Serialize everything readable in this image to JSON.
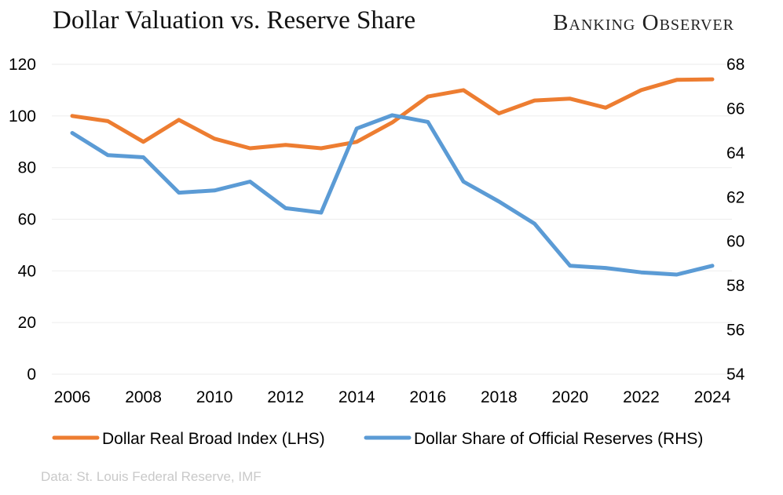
{
  "header": {
    "title": "Dollar Valuation vs. Reserve Share",
    "brand": "Banking Observer"
  },
  "footer": {
    "source": "Data: St. Louis Federal Reserve, IMF"
  },
  "colors": {
    "index": "#ed7d31",
    "reserves": "#5b9bd5",
    "grid": "#efefef"
  },
  "chart_data": {
    "type": "line",
    "title": "Dollar Valuation vs. Reserve Share",
    "x": [
      2006,
      2007,
      2008,
      2009,
      2010,
      2011,
      2012,
      2013,
      2014,
      2015,
      2016,
      2017,
      2018,
      2019,
      2020,
      2021,
      2022,
      2023,
      2024
    ],
    "x_ticks": [
      "2006",
      "2008",
      "2010",
      "2012",
      "2014",
      "2016",
      "2018",
      "2020",
      "2022",
      "2024"
    ],
    "y_left": {
      "range": [
        0,
        120
      ],
      "ticks": [
        "0",
        "20",
        "40",
        "60",
        "80",
        "100",
        "120"
      ]
    },
    "y_right": {
      "range": [
        54,
        68
      ],
      "ticks": [
        "54",
        "56",
        "58",
        "60",
        "62",
        "64",
        "66",
        "68"
      ]
    },
    "grid": true,
    "legend_position": "bottom",
    "series": [
      {
        "name": "Dollar Real Broad Index (LHS)",
        "axis": "left",
        "color": "#ed7d31",
        "values": [
          100,
          98,
          90,
          98.5,
          91.2,
          87.5,
          88.8,
          87.5,
          90,
          97.5,
          107.5,
          110,
          101,
          106,
          106.7,
          103.2,
          110,
          114,
          114.2
        ]
      },
      {
        "name": "Dollar Share of Official Reserves (RHS)",
        "axis": "right",
        "color": "#5b9bd5",
        "values": [
          64.9,
          63.9,
          63.8,
          62.2,
          62.3,
          62.7,
          61.5,
          61.3,
          65.1,
          65.7,
          65.4,
          62.7,
          61.8,
          60.8,
          58.9,
          58.8,
          58.6,
          58.5,
          58.9
        ]
      }
    ]
  }
}
